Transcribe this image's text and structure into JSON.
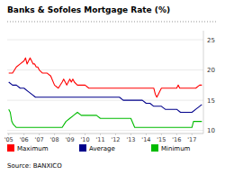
{
  "chart_data": {
    "type": "line",
    "title": "Banks & Sofoles Mortgage Rate (%)",
    "source": "Source: BANXICO",
    "xlim": [
      2004.9,
      2017.75
    ],
    "ylim": [
      9.5,
      26.5
    ],
    "yticks": [
      10,
      15,
      20,
      25
    ],
    "xticks": [
      {
        "value": 2005,
        "label": "'05"
      },
      {
        "value": 2006,
        "label": "'06"
      },
      {
        "value": 2007,
        "label": "'07"
      },
      {
        "value": 2008,
        "label": "'08"
      },
      {
        "value": 2009,
        "label": "'09"
      },
      {
        "value": 2010,
        "label": "'10"
      },
      {
        "value": 2011,
        "label": "'11"
      },
      {
        "value": 2012,
        "label": "'12"
      },
      {
        "value": 2013,
        "label": "'13"
      },
      {
        "value": 2014,
        "label": "'14"
      },
      {
        "value": 2015,
        "label": "'15"
      },
      {
        "value": 2016,
        "label": "'16"
      },
      {
        "value": 2017,
        "label": "'17"
      }
    ],
    "grid": true,
    "legend": "bottom",
    "series": [
      {
        "name": "Maximum",
        "color": "#ff0000",
        "x": [
          2005.0,
          2005.25,
          2005.5,
          2005.75,
          2006.0,
          2006.1,
          2006.2,
          2006.3,
          2006.4,
          2006.5,
          2006.6,
          2006.7,
          2006.8,
          2006.9,
          2007.0,
          2007.2,
          2007.5,
          2007.75,
          2008.0,
          2008.25,
          2008.5,
          2008.6,
          2008.7,
          2008.8,
          2008.9,
          2009.0,
          2009.1,
          2009.2,
          2009.3,
          2009.5,
          2009.75,
          2010.0,
          2010.25,
          2010.5,
          2010.75,
          2011.0,
          2011.25,
          2011.5,
          2011.75,
          2012.0,
          2012.25,
          2012.5,
          2012.75,
          2013.0,
          2013.25,
          2013.5,
          2013.75,
          2014.0,
          2014.25,
          2014.5,
          2014.6,
          2014.7,
          2014.8,
          2014.9,
          2015.0,
          2015.1,
          2015.25,
          2015.5,
          2015.75,
          2016.0,
          2016.1,
          2016.2,
          2016.3,
          2016.5,
          2016.75,
          2017.0,
          2017.25,
          2017.5,
          2017.65
        ],
        "values": [
          19.5,
          19.5,
          20.5,
          21.0,
          21.5,
          22.0,
          21.0,
          21.5,
          22.0,
          21.5,
          21.0,
          21.0,
          20.5,
          20.5,
          20.0,
          19.5,
          19.5,
          19.0,
          17.5,
          17.0,
          18.0,
          18.5,
          18.0,
          17.5,
          18.0,
          18.5,
          18.0,
          18.5,
          18.0,
          17.5,
          17.5,
          17.5,
          17.0,
          17.0,
          17.0,
          17.0,
          17.0,
          17.0,
          17.0,
          17.0,
          17.0,
          17.0,
          17.0,
          17.0,
          17.0,
          17.0,
          17.0,
          17.0,
          17.0,
          17.0,
          16.0,
          15.5,
          16.0,
          16.5,
          17.0,
          17.0,
          17.0,
          17.0,
          17.0,
          17.0,
          17.5,
          17.0,
          17.0,
          17.0,
          17.0,
          17.0,
          17.0,
          17.5,
          17.5
        ]
      },
      {
        "name": "Average",
        "color": "#00008b",
        "x": [
          2005.0,
          2005.25,
          2005.5,
          2005.75,
          2006.0,
          2006.25,
          2006.5,
          2006.75,
          2007.0,
          2007.25,
          2007.5,
          2007.75,
          2008.0,
          2008.25,
          2008.5,
          2008.75,
          2009.0,
          2009.25,
          2009.5,
          2009.75,
          2010.0,
          2010.25,
          2010.5,
          2010.75,
          2011.0,
          2011.25,
          2011.5,
          2011.75,
          2012.0,
          2012.25,
          2012.5,
          2012.75,
          2013.0,
          2013.25,
          2013.5,
          2013.75,
          2014.0,
          2014.25,
          2014.5,
          2014.75,
          2015.0,
          2015.25,
          2015.5,
          2015.75,
          2016.0,
          2016.25,
          2016.5,
          2016.75,
          2017.0,
          2017.25,
          2017.5,
          2017.65
        ],
        "values": [
          18.0,
          17.5,
          17.5,
          17.0,
          17.0,
          16.5,
          16.0,
          15.5,
          15.5,
          15.5,
          15.5,
          15.5,
          15.5,
          15.5,
          15.5,
          15.5,
          15.5,
          15.5,
          15.5,
          15.5,
          15.5,
          15.5,
          15.5,
          15.5,
          15.5,
          15.5,
          15.5,
          15.5,
          15.5,
          15.5,
          15.0,
          15.0,
          15.0,
          15.0,
          15.0,
          15.0,
          14.5,
          14.5,
          14.0,
          14.0,
          14.0,
          13.5,
          13.5,
          13.5,
          13.5,
          13.0,
          13.0,
          13.0,
          13.0,
          13.5,
          14.0,
          14.3
        ]
      },
      {
        "name": "Minimum",
        "color": "#00bb00",
        "x": [
          2005.0,
          2005.1,
          2005.2,
          2005.3,
          2005.5,
          2005.75,
          2006.0,
          2006.25,
          2006.5,
          2006.75,
          2007.0,
          2007.25,
          2007.5,
          2007.75,
          2008.0,
          2008.25,
          2008.5,
          2008.75,
          2009.0,
          2009.25,
          2009.5,
          2009.75,
          2010.0,
          2010.25,
          2010.5,
          2010.75,
          2011.0,
          2011.25,
          2011.5,
          2011.75,
          2012.0,
          2012.25,
          2012.5,
          2012.75,
          2013.0,
          2013.25,
          2013.5,
          2013.75,
          2014.0,
          2014.25,
          2014.5,
          2014.75,
          2015.0,
          2015.25,
          2015.5,
          2015.75,
          2016.0,
          2016.25,
          2016.5,
          2016.75,
          2017.0,
          2017.1,
          2017.25,
          2017.5,
          2017.65
        ],
        "values": [
          13.5,
          13.0,
          11.5,
          11.0,
          10.5,
          10.5,
          10.5,
          10.5,
          10.5,
          10.5,
          10.5,
          10.5,
          10.5,
          10.5,
          10.5,
          10.5,
          10.5,
          11.5,
          12.0,
          12.5,
          13.0,
          12.5,
          12.5,
          12.5,
          12.5,
          12.5,
          12.0,
          12.0,
          12.0,
          12.0,
          12.0,
          12.0,
          12.0,
          12.0,
          12.0,
          10.5,
          10.5,
          10.5,
          10.5,
          10.5,
          10.5,
          10.5,
          10.5,
          10.5,
          10.5,
          10.5,
          10.5,
          10.5,
          10.5,
          10.5,
          10.5,
          11.5,
          11.5,
          11.5,
          11.5
        ]
      }
    ]
  }
}
